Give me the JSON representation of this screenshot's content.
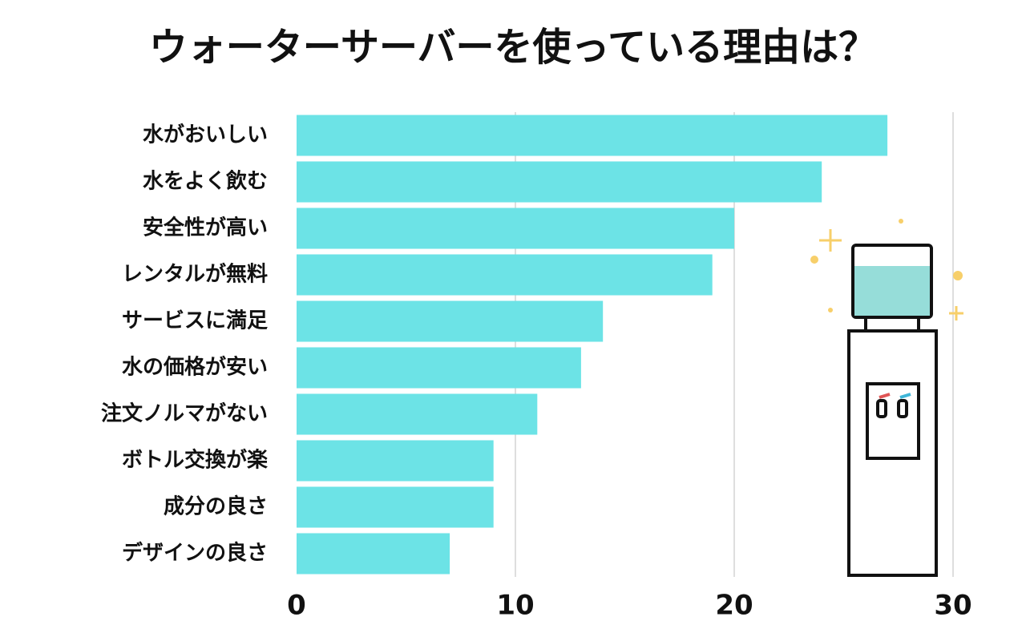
{
  "chart_data": {
    "type": "bar",
    "title": "ウォーターサーバーを使っている理由は？",
    "categories": [
      "水がおいしい",
      "水をよく飲む",
      "安全性が高い",
      "レンタルが無料",
      "サービスに満足",
      "水の価格が安い",
      "注文ノルマがない",
      "ボトル交換が楽",
      "成分の良さ",
      "デザインの良さ"
    ],
    "values": [
      27,
      24,
      20,
      19,
      14,
      13,
      11,
      9,
      9,
      7
    ],
    "color": "#6ce3e6",
    "xlim": [
      0,
      30
    ],
    "xticks": [
      0,
      10,
      20,
      30
    ],
    "grid": true
  }
}
